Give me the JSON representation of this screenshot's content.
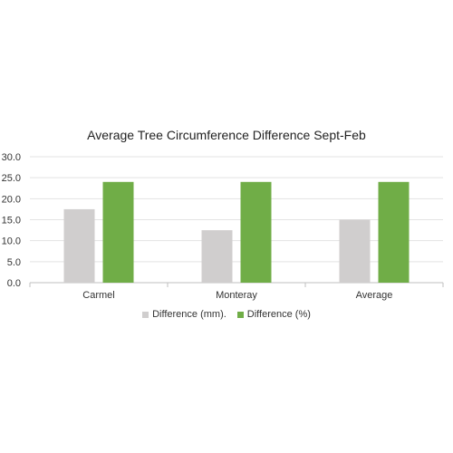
{
  "chart_data": {
    "type": "bar",
    "title": "Average Tree Circumference Difference Sept-Feb",
    "categories": [
      "Carmel",
      "Monteray",
      "Average"
    ],
    "series": [
      {
        "name": "Difference (mm).",
        "values": [
          17.5,
          12.5,
          15.0
        ],
        "color": "#d0cece"
      },
      {
        "name": "Difference (%)",
        "values": [
          24.0,
          24.0,
          24.0
        ],
        "color": "#70ad47"
      }
    ],
    "ylim": [
      0,
      30
    ],
    "yticks": [
      "0.0",
      "5.0",
      "10.0",
      "15.0",
      "20.0",
      "25.0",
      "30.0"
    ],
    "grid": true,
    "legend": "bottom"
  }
}
